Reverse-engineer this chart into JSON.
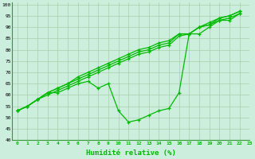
{
  "xlabel": "Humidité relative (%)",
  "background_color": "#cceedd",
  "grid_color": "#aaccaa",
  "line_color": "#00bb00",
  "xlim": [
    -0.5,
    23
  ],
  "ylim": [
    40,
    101
  ],
  "xticks": [
    0,
    1,
    2,
    3,
    4,
    5,
    6,
    7,
    8,
    9,
    10,
    11,
    12,
    13,
    14,
    15,
    16,
    17,
    18,
    19,
    20,
    21,
    22,
    23
  ],
  "yticks": [
    40,
    45,
    50,
    55,
    60,
    65,
    70,
    75,
    80,
    85,
    90,
    95,
    100
  ],
  "series": [
    [
      53,
      55,
      58,
      61,
      61,
      63,
      65,
      66,
      63,
      65,
      53,
      48,
      49,
      51,
      53,
      54,
      61,
      87,
      87,
      90,
      93,
      93,
      96
    ],
    [
      53,
      55,
      58,
      60,
      62,
      64,
      66,
      68,
      70,
      72,
      74,
      76,
      78,
      79,
      81,
      82,
      86,
      87,
      90,
      91,
      93,
      94,
      96
    ],
    [
      53,
      55,
      58,
      61,
      63,
      65,
      67,
      69,
      71,
      73,
      75,
      77,
      79,
      80,
      82,
      83,
      87,
      87,
      90,
      91,
      94,
      95,
      97
    ],
    [
      53,
      55,
      58,
      61,
      63,
      65,
      68,
      70,
      72,
      74,
      76,
      78,
      80,
      81,
      83,
      84,
      87,
      87,
      90,
      92,
      94,
      95,
      97
    ]
  ]
}
